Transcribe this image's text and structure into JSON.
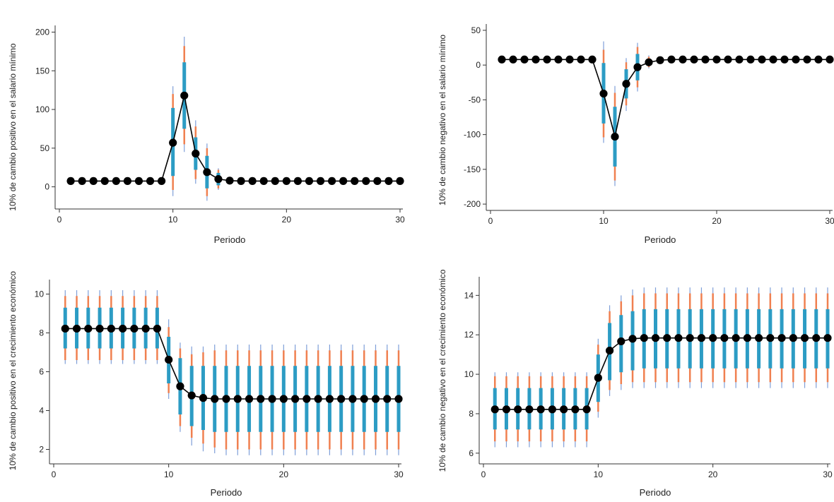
{
  "colors": {
    "line": "#000000",
    "marker": "#000000",
    "band_outer_thin": "#7f9fd8",
    "band_outer": "#f08050",
    "band_inner": "#2c9cc4",
    "axis": "#333333"
  },
  "chart_data": [
    {
      "type": "line",
      "id": "positive-minwage",
      "xlabel": "Periodo",
      "ylabel": "10% de cambio positivo en el salario mínimo",
      "xlim": [
        0,
        30
      ],
      "ylim": [
        -25,
        205
      ],
      "xticks": [
        0,
        10,
        20,
        30
      ],
      "yticks": [
        0,
        50,
        100,
        150,
        200
      ],
      "grid": false,
      "x": [
        1,
        2,
        3,
        4,
        5,
        6,
        7,
        8,
        9,
        10,
        11,
        12,
        13,
        14,
        15,
        16,
        17,
        18,
        19,
        20,
        21,
        22,
        23,
        24,
        25,
        26,
        27,
        28,
        29,
        30
      ],
      "y": [
        7.5,
        7.5,
        7.5,
        7.5,
        7.5,
        7.5,
        7.5,
        7.5,
        7.5,
        57,
        118,
        43,
        19,
        10,
        8,
        7.5,
        7.5,
        7.5,
        7.5,
        7.5,
        7.5,
        7.5,
        7.5,
        7.5,
        7.5,
        7.5,
        7.5,
        7.5,
        7.5,
        7.5
      ],
      "ci_inner": [
        null,
        null,
        null,
        null,
        null,
        null,
        null,
        null,
        null,
        [
          14,
          102
        ],
        [
          75,
          161
        ],
        [
          22,
          64
        ],
        [
          -2,
          40
        ],
        [
          2,
          18
        ],
        [
          6,
          10
        ],
        null,
        null,
        null,
        null,
        null,
        null,
        null,
        null,
        null,
        null,
        null,
        null,
        null,
        null,
        null
      ],
      "ci_outer": [
        null,
        null,
        null,
        null,
        null,
        null,
        null,
        null,
        null,
        [
          -4,
          120
        ],
        [
          55,
          182
        ],
        [
          10,
          78
        ],
        [
          -12,
          50
        ],
        [
          -2,
          22
        ],
        [
          5,
          11
        ],
        null,
        null,
        null,
        null,
        null,
        null,
        null,
        null,
        null,
        null,
        null,
        null,
        null,
        null,
        null
      ],
      "ci_outermost": [
        null,
        null,
        null,
        null,
        null,
        null,
        null,
        null,
        null,
        [
          -12,
          130
        ],
        [
          45,
          194
        ],
        [
          4,
          86
        ],
        [
          -18,
          56
        ],
        [
          -4,
          24
        ],
        [
          4,
          12
        ],
        null,
        null,
        null,
        null,
        null,
        null,
        null,
        null,
        null,
        null,
        null,
        null,
        null,
        null,
        null
      ]
    },
    {
      "type": "line",
      "id": "negative-minwage",
      "xlabel": "Periodo",
      "ylabel": "10% de cambio negativo en el salario mínimo",
      "xlim": [
        0,
        30
      ],
      "ylim": [
        -205,
        55
      ],
      "xticks": [
        0,
        10,
        20,
        30
      ],
      "yticks": [
        -200,
        -150,
        -100,
        -50,
        0,
        50
      ],
      "grid": false,
      "x": [
        1,
        2,
        3,
        4,
        5,
        6,
        7,
        8,
        9,
        10,
        11,
        12,
        13,
        14,
        15,
        16,
        17,
        18,
        19,
        20,
        21,
        22,
        23,
        24,
        25,
        26,
        27,
        28,
        29,
        30
      ],
      "y": [
        8,
        8,
        8,
        8,
        8,
        8,
        8,
        8,
        8,
        -41,
        -103,
        -27,
        -3,
        4,
        7,
        8,
        8,
        8,
        8,
        8,
        8,
        8,
        8,
        8,
        8,
        8,
        8,
        8,
        8,
        8
      ],
      "ci_inner": [
        null,
        null,
        null,
        null,
        null,
        null,
        null,
        null,
        null,
        [
          -84,
          3
        ],
        [
          -146,
          -60
        ],
        [
          -48,
          -6
        ],
        [
          -22,
          16
        ],
        [
          0,
          9
        ],
        [
          5,
          9
        ],
        null,
        null,
        null,
        null,
        null,
        null,
        null,
        null,
        null,
        null,
        null,
        null,
        null,
        null,
        null
      ],
      "ci_outer": [
        null,
        null,
        null,
        null,
        null,
        null,
        null,
        null,
        null,
        [
          -104,
          22
        ],
        [
          -166,
          -40
        ],
        [
          -58,
          4
        ],
        [
          -32,
          26
        ],
        [
          -3,
          12
        ],
        [
          4,
          10
        ],
        null,
        null,
        null,
        null,
        null,
        null,
        null,
        null,
        null,
        null,
        null,
        null,
        null,
        null,
        null
      ],
      "ci_outermost": [
        null,
        null,
        null,
        null,
        null,
        null,
        null,
        null,
        null,
        [
          -112,
          34
        ],
        [
          -174,
          -30
        ],
        [
          -66,
          10
        ],
        [
          -38,
          32
        ],
        [
          -5,
          14
        ],
        [
          3,
          11
        ],
        null,
        null,
        null,
        null,
        null,
        null,
        null,
        null,
        null,
        null,
        null,
        null,
        null,
        null,
        null
      ]
    },
    {
      "type": "line",
      "id": "positive-growth",
      "xlabel": "Periodo",
      "ylabel": "10% de cambio positivo en el crecimiento económico",
      "xlim": [
        0,
        30
      ],
      "ylim": [
        1.4,
        10.6
      ],
      "xticks": [
        0,
        10,
        20,
        30
      ],
      "yticks": [
        2,
        4,
        6,
        8,
        10
      ],
      "grid": false,
      "x": [
        1,
        2,
        3,
        4,
        5,
        6,
        7,
        8,
        9,
        10,
        11,
        12,
        13,
        14,
        15,
        16,
        17,
        18,
        19,
        20,
        21,
        22,
        23,
        24,
        25,
        26,
        27,
        28,
        29,
        30
      ],
      "y": [
        8.22,
        8.22,
        8.22,
        8.22,
        8.22,
        8.22,
        8.22,
        8.22,
        8.22,
        6.62,
        5.25,
        4.78,
        4.65,
        4.6,
        4.6,
        4.6,
        4.6,
        4.6,
        4.6,
        4.6,
        4.6,
        4.6,
        4.6,
        4.6,
        4.6,
        4.6,
        4.6,
        4.6,
        4.6,
        4.6
      ],
      "ci_inner": [
        [
          7.2,
          9.3
        ],
        [
          7.2,
          9.3
        ],
        [
          7.2,
          9.3
        ],
        [
          7.2,
          9.3
        ],
        [
          7.2,
          9.3
        ],
        [
          7.2,
          9.3
        ],
        [
          7.2,
          9.3
        ],
        [
          7.2,
          9.3
        ],
        [
          7.2,
          9.3
        ],
        [
          5.4,
          7.8
        ],
        [
          3.8,
          6.7
        ],
        [
          3.2,
          6.3
        ],
        [
          3.0,
          6.3
        ],
        [
          2.9,
          6.3
        ],
        [
          2.9,
          6.3
        ],
        [
          2.9,
          6.3
        ],
        [
          2.9,
          6.3
        ],
        [
          2.9,
          6.3
        ],
        [
          2.9,
          6.3
        ],
        [
          2.9,
          6.3
        ],
        [
          2.9,
          6.3
        ],
        [
          2.9,
          6.3
        ],
        [
          2.9,
          6.3
        ],
        [
          2.9,
          6.3
        ],
        [
          2.9,
          6.3
        ],
        [
          2.9,
          6.3
        ],
        [
          2.9,
          6.3
        ],
        [
          2.9,
          6.3
        ],
        [
          2.9,
          6.3
        ],
        [
          2.9,
          6.3
        ]
      ],
      "ci_outer": [
        [
          6.6,
          9.9
        ],
        [
          6.6,
          9.9
        ],
        [
          6.6,
          9.9
        ],
        [
          6.6,
          9.9
        ],
        [
          6.6,
          9.9
        ],
        [
          6.6,
          9.9
        ],
        [
          6.6,
          9.9
        ],
        [
          6.6,
          9.9
        ],
        [
          6.6,
          9.9
        ],
        [
          4.9,
          8.3
        ],
        [
          3.2,
          7.2
        ],
        [
          2.6,
          6.9
        ],
        [
          2.3,
          7.0
        ],
        [
          2.1,
          7.1
        ],
        [
          2.0,
          7.1
        ],
        [
          2.0,
          7.1
        ],
        [
          2.0,
          7.1
        ],
        [
          2.0,
          7.1
        ],
        [
          2.0,
          7.1
        ],
        [
          2.0,
          7.1
        ],
        [
          2.0,
          7.1
        ],
        [
          2.0,
          7.1
        ],
        [
          2.0,
          7.1
        ],
        [
          2.0,
          7.1
        ],
        [
          2.0,
          7.1
        ],
        [
          2.0,
          7.1
        ],
        [
          2.0,
          7.1
        ],
        [
          2.0,
          7.1
        ],
        [
          2.0,
          7.1
        ],
        [
          2.0,
          7.1
        ]
      ],
      "ci_outermost": [
        [
          6.4,
          10.2
        ],
        [
          6.4,
          10.2
        ],
        [
          6.4,
          10.2
        ],
        [
          6.4,
          10.2
        ],
        [
          6.4,
          10.2
        ],
        [
          6.4,
          10.2
        ],
        [
          6.4,
          10.2
        ],
        [
          6.4,
          10.2
        ],
        [
          6.4,
          10.2
        ],
        [
          4.6,
          8.7
        ],
        [
          2.9,
          7.5
        ],
        [
          2.2,
          7.3
        ],
        [
          1.9,
          7.3
        ],
        [
          1.8,
          7.4
        ],
        [
          1.7,
          7.4
        ],
        [
          1.7,
          7.4
        ],
        [
          1.7,
          7.4
        ],
        [
          1.7,
          7.4
        ],
        [
          1.7,
          7.4
        ],
        [
          1.7,
          7.4
        ],
        [
          1.7,
          7.4
        ],
        [
          1.7,
          7.4
        ],
        [
          1.7,
          7.4
        ],
        [
          1.7,
          7.4
        ],
        [
          1.7,
          7.4
        ],
        [
          1.7,
          7.4
        ],
        [
          1.7,
          7.4
        ],
        [
          1.7,
          7.4
        ],
        [
          1.7,
          7.4
        ],
        [
          1.7,
          7.4
        ]
      ]
    },
    {
      "type": "line",
      "id": "negative-growth",
      "xlabel": "Periodo",
      "ylabel": "10% de cambio negativo en el crecimiento económico",
      "xlim": [
        0,
        30
      ],
      "ylim": [
        5.6,
        14.8
      ],
      "xticks": [
        0,
        10,
        20,
        30
      ],
      "yticks": [
        6,
        8,
        10,
        12,
        14
      ],
      "grid": false,
      "x": [
        1,
        2,
        3,
        4,
        5,
        6,
        7,
        8,
        9,
        10,
        11,
        12,
        13,
        14,
        15,
        16,
        17,
        18,
        19,
        20,
        21,
        22,
        23,
        24,
        25,
        26,
        27,
        28,
        29,
        30
      ],
      "y": [
        8.22,
        8.22,
        8.22,
        8.22,
        8.22,
        8.22,
        8.22,
        8.22,
        8.22,
        9.82,
        11.2,
        11.67,
        11.8,
        11.84,
        11.84,
        11.84,
        11.84,
        11.84,
        11.84,
        11.84,
        11.84,
        11.84,
        11.84,
        11.84,
        11.84,
        11.84,
        11.84,
        11.84,
        11.84,
        11.84
      ],
      "ci_inner": [
        [
          7.2,
          9.3
        ],
        [
          7.2,
          9.3
        ],
        [
          7.2,
          9.3
        ],
        [
          7.2,
          9.3
        ],
        [
          7.2,
          9.3
        ],
        [
          7.2,
          9.3
        ],
        [
          7.2,
          9.3
        ],
        [
          7.2,
          9.3
        ],
        [
          7.2,
          9.3
        ],
        [
          8.6,
          11.0
        ],
        [
          9.7,
          12.6
        ],
        [
          10.1,
          13.0
        ],
        [
          10.2,
          13.2
        ],
        [
          10.3,
          13.3
        ],
        [
          10.3,
          13.3
        ],
        [
          10.3,
          13.3
        ],
        [
          10.3,
          13.3
        ],
        [
          10.3,
          13.3
        ],
        [
          10.3,
          13.3
        ],
        [
          10.3,
          13.3
        ],
        [
          10.3,
          13.3
        ],
        [
          10.3,
          13.3
        ],
        [
          10.3,
          13.3
        ],
        [
          10.3,
          13.3
        ],
        [
          10.3,
          13.3
        ],
        [
          10.3,
          13.3
        ],
        [
          10.3,
          13.3
        ],
        [
          10.3,
          13.3
        ],
        [
          10.3,
          13.3
        ],
        [
          10.3,
          13.3
        ]
      ],
      "ci_outer": [
        [
          6.6,
          9.9
        ],
        [
          6.6,
          9.9
        ],
        [
          6.6,
          9.9
        ],
        [
          6.6,
          9.9
        ],
        [
          6.6,
          9.9
        ],
        [
          6.6,
          9.9
        ],
        [
          6.6,
          9.9
        ],
        [
          6.6,
          9.9
        ],
        [
          6.6,
          9.9
        ],
        [
          8.1,
          11.5
        ],
        [
          9.2,
          13.2
        ],
        [
          9.5,
          13.7
        ],
        [
          9.6,
          14.0
        ],
        [
          9.6,
          14.1
        ],
        [
          9.6,
          14.1
        ],
        [
          9.6,
          14.1
        ],
        [
          9.6,
          14.1
        ],
        [
          9.6,
          14.1
        ],
        [
          9.6,
          14.1
        ],
        [
          9.6,
          14.1
        ],
        [
          9.6,
          14.1
        ],
        [
          9.6,
          14.1
        ],
        [
          9.6,
          14.1
        ],
        [
          9.6,
          14.1
        ],
        [
          9.6,
          14.1
        ],
        [
          9.6,
          14.1
        ],
        [
          9.6,
          14.1
        ],
        [
          9.6,
          14.1
        ],
        [
          9.6,
          14.1
        ],
        [
          9.6,
          14.1
        ]
      ],
      "ci_outermost": [
        [
          6.3,
          10.1
        ],
        [
          6.3,
          10.1
        ],
        [
          6.3,
          10.1
        ],
        [
          6.3,
          10.1
        ],
        [
          6.3,
          10.1
        ],
        [
          6.3,
          10.1
        ],
        [
          6.3,
          10.1
        ],
        [
          6.3,
          10.1
        ],
        [
          6.3,
          10.1
        ],
        [
          7.8,
          11.8
        ],
        [
          8.9,
          13.5
        ],
        [
          9.2,
          14.0
        ],
        [
          9.3,
          14.3
        ],
        [
          9.3,
          14.4
        ],
        [
          9.3,
          14.4
        ],
        [
          9.3,
          14.4
        ],
        [
          9.3,
          14.4
        ],
        [
          9.3,
          14.4
        ],
        [
          9.3,
          14.4
        ],
        [
          9.3,
          14.4
        ],
        [
          9.3,
          14.4
        ],
        [
          9.3,
          14.4
        ],
        [
          9.3,
          14.4
        ],
        [
          9.3,
          14.4
        ],
        [
          9.3,
          14.4
        ],
        [
          9.3,
          14.4
        ],
        [
          9.3,
          14.4
        ],
        [
          9.3,
          14.4
        ],
        [
          9.3,
          14.4
        ],
        [
          9.3,
          14.4
        ]
      ]
    }
  ]
}
